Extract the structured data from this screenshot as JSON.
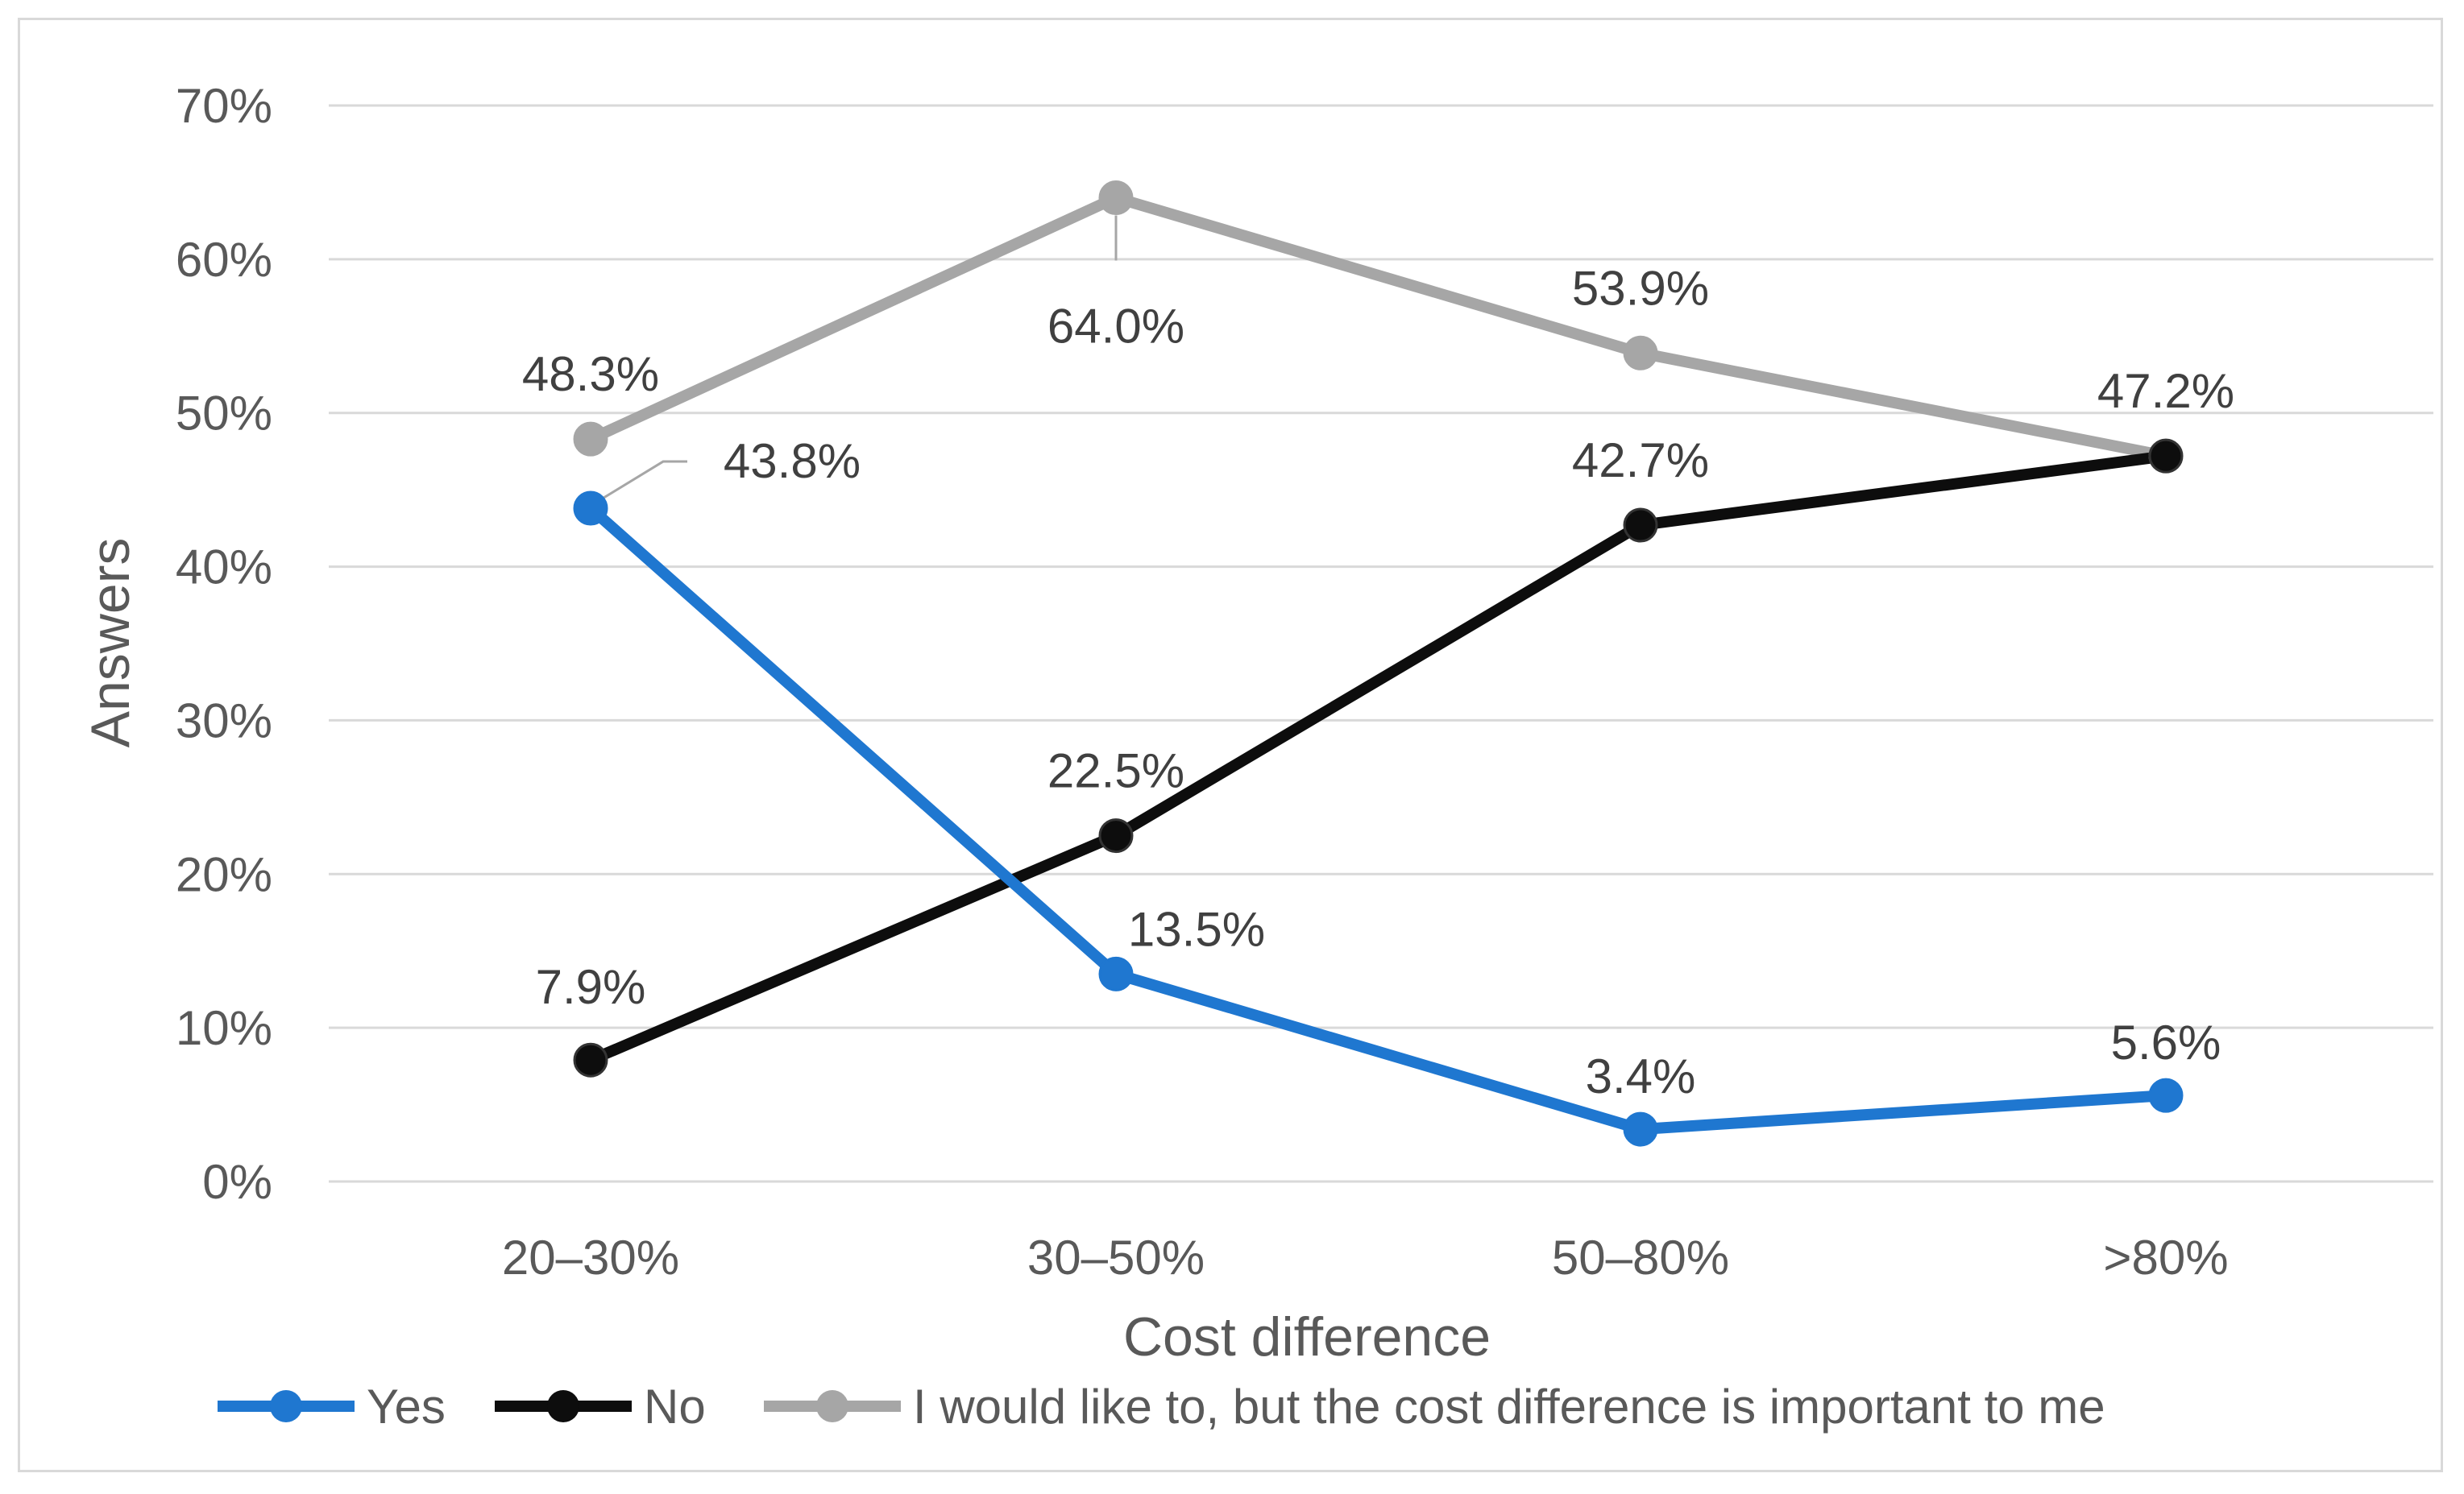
{
  "chart_data": {
    "type": "line",
    "title": "",
    "xlabel": "Cost difference",
    "ylabel": "Answers",
    "categories": [
      "20–30%",
      "30–50%",
      "50–80%",
      ">80%"
    ],
    "ylim": [
      0,
      70
    ],
    "yticks": [
      0,
      10,
      20,
      30,
      40,
      50,
      60,
      70
    ],
    "ytick_labels": [
      "0%",
      "10%",
      "20%",
      "30%",
      "40%",
      "50%",
      "60%",
      "70%"
    ],
    "grid": true,
    "legend_position": "bottom",
    "series": [
      {
        "name": "Yes",
        "color": "#1f77d0",
        "values": [
          43.8,
          13.5,
          3.4,
          5.6
        ],
        "labels": [
          "43.8%",
          "13.5%",
          "3.4%",
          "5.6%"
        ]
      },
      {
        "name": "No",
        "color": "#0d0d0d",
        "values": [
          7.9,
          22.5,
          42.7,
          47.2
        ],
        "labels": [
          "7.9%",
          "22.5%",
          "42.7%",
          "47.2%"
        ]
      },
      {
        "name": "I would like to, but the cost difference is important to me",
        "color": "#a6a6a6",
        "values": [
          48.3,
          64.0,
          53.9,
          47.2
        ],
        "labels": [
          "48.3%",
          "64.0%",
          "53.9%",
          "47.2%"
        ]
      }
    ]
  }
}
